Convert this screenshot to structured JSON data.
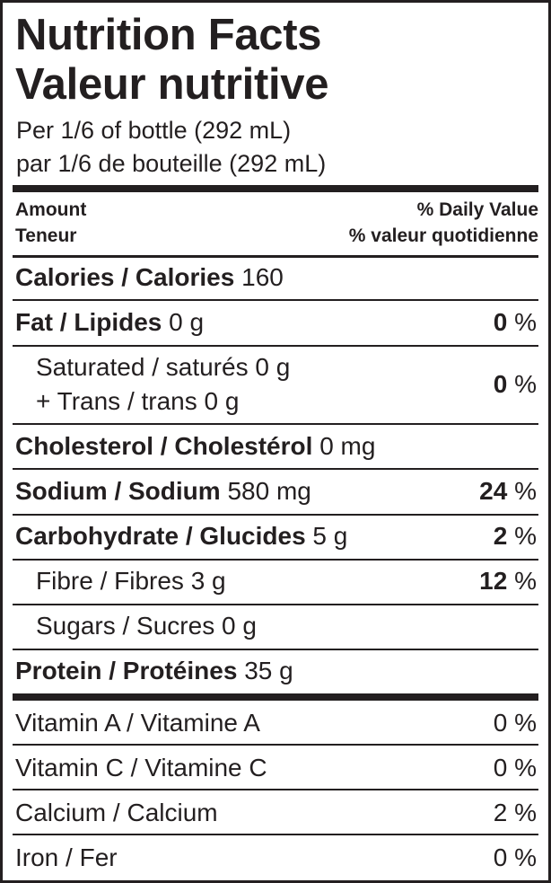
{
  "title_en": "Nutrition Facts",
  "title_fr": "Valeur nutritive",
  "serving_en": "Per 1/6 of bottle (292 mL)",
  "serving_fr": "par 1/6 de bouteille (292 mL)",
  "header": {
    "amount_en": "Amount",
    "amount_fr": "Teneur",
    "dv_en": "% Daily Value",
    "dv_fr": "% valeur quotidienne"
  },
  "nutrients": [
    {
      "name": "Calories / Calories",
      "amount": "160",
      "dv": "",
      "pct": ""
    },
    {
      "name": "Fat / Lipides",
      "amount": "0 g",
      "dv": "0",
      "pct": "%"
    },
    {
      "name": "Saturated / saturés 0 g",
      "name2": "+ Trans / trans  0 g",
      "dv": "0",
      "pct": "%"
    },
    {
      "name": "Cholesterol / Cholestérol",
      "amount": "0 mg",
      "dv": "",
      "pct": ""
    },
    {
      "name": "Sodium / Sodium",
      "amount": "580 mg",
      "dv": "24",
      "pct": "%"
    },
    {
      "name": "Carbohydrate / Glucides",
      "amount": "5 g",
      "dv": "2",
      "pct": "%"
    },
    {
      "name": "Fibre / Fibres 3 g",
      "dv": "12",
      "pct": "%"
    },
    {
      "name": "Sugars / Sucres 0 g"
    },
    {
      "name": "Protein / Protéines",
      "amount": "35 g"
    }
  ],
  "vitamins": [
    {
      "name": "Vitamin A / Vitamine A",
      "dv": "0 %"
    },
    {
      "name": "Vitamin C / Vitamine C",
      "dv": "0 %"
    },
    {
      "name": "Calcium / Calcium",
      "dv": "2 %"
    },
    {
      "name": "Iron / Fer",
      "dv": "0 %"
    }
  ]
}
